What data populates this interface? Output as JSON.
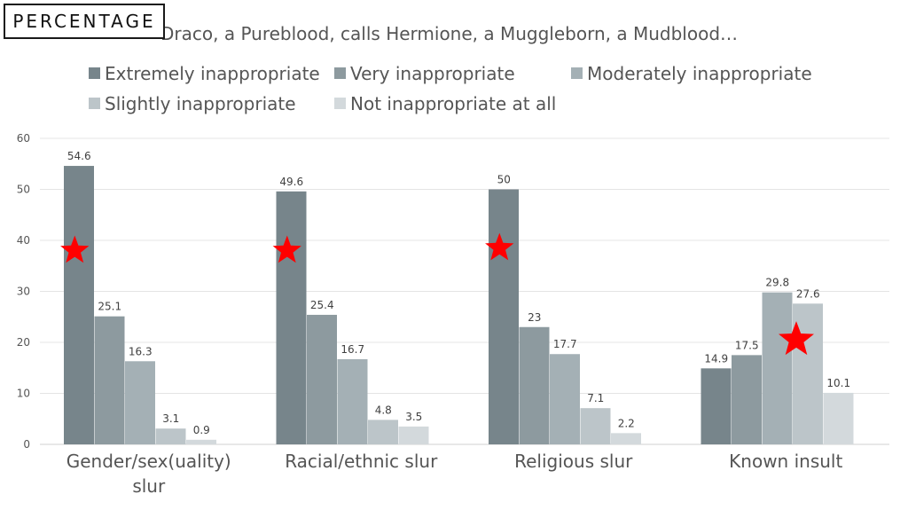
{
  "badge": "PERCENTAGE",
  "chart_data": {
    "type": "bar",
    "title": "Draco, a Pureblood, calls Hermione, a Muggleborn, a Mudblood…",
    "categories": [
      "Gender/sex(uality) slur",
      "Racial/ethnic slur",
      "Religious slur",
      "Known insult"
    ],
    "series": [
      {
        "name": "Extremely inappropriate",
        "color": "#77858b",
        "values": [
          54.6,
          49.6,
          50,
          14.9
        ]
      },
      {
        "name": "Very inappropriate",
        "color": "#8d9a9f",
        "values": [
          25.1,
          25.4,
          23,
          17.5
        ]
      },
      {
        "name": "Moderately inappropriate",
        "color": "#a4b0b5",
        "values": [
          16.3,
          16.7,
          17.7,
          29.8
        ]
      },
      {
        "name": "Slightly inappropriate",
        "color": "#bcc5c9",
        "values": [
          3.1,
          4.8,
          7.1,
          27.6
        ]
      },
      {
        "name": "Not inappropriate at all",
        "color": "#d3d9dc",
        "values": [
          0.9,
          3.5,
          2.2,
          10.1
        ]
      }
    ],
    "ylim": [
      0,
      60
    ],
    "yticks": [
      0,
      10,
      20,
      30,
      40,
      50,
      60
    ],
    "grid": true,
    "legend": "top",
    "stars": [
      {
        "category": 0,
        "series": 0,
        "y": 38,
        "size": "small"
      },
      {
        "category": 1,
        "series": 0,
        "y": 38,
        "size": "small"
      },
      {
        "category": 2,
        "series": 0,
        "y": 38.5,
        "size": "small"
      },
      {
        "category": 3,
        "series": 3,
        "y": 20.5,
        "size": "large"
      }
    ],
    "star_color": "#ff0000"
  }
}
